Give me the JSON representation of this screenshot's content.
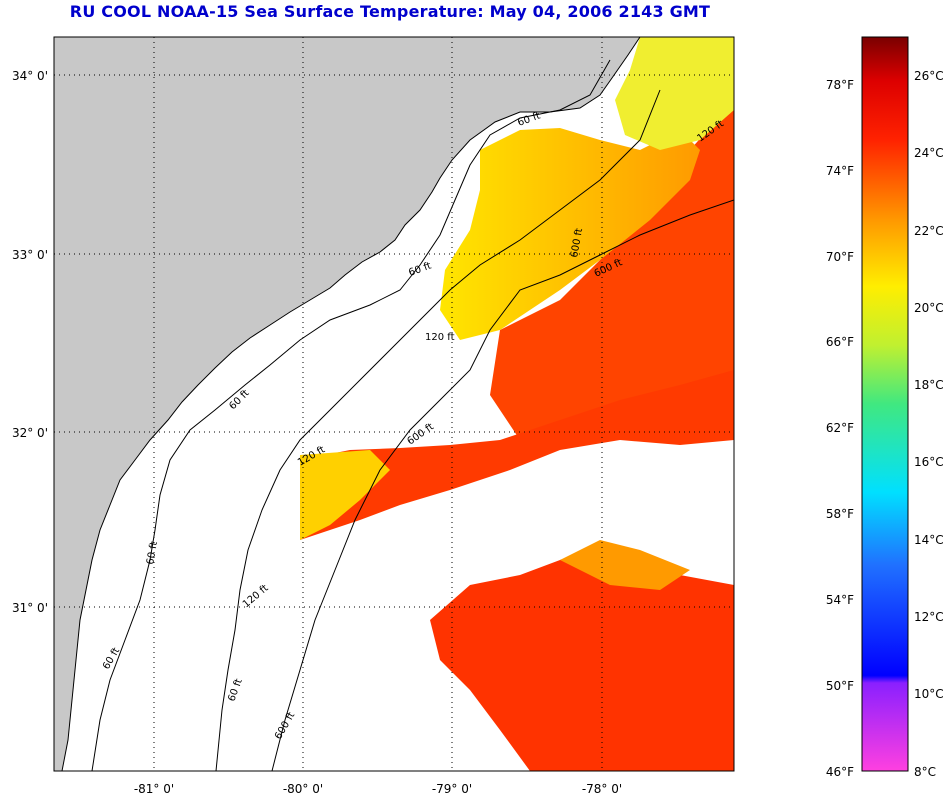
{
  "title": "RU COOL  NOAA-15  Sea Surface Temperature:  May 04, 2006 2143 GMT",
  "map": {
    "lat_labels": [
      "34° 0'",
      "33° 0'",
      "32° 0'",
      "31° 0'"
    ],
    "lon_labels": [
      "-81° 0'",
      "-80° 0'",
      "-79° 0'",
      "-78° 0'"
    ],
    "contour_labels": [
      "60 ft",
      "120 ft",
      "600 ft",
      "60 ft",
      "120 ft",
      "600 ft",
      "60 ft",
      "120 ft",
      "600 ft",
      "60 ft",
      "120 ft",
      "600 ft",
      "60 ft",
      "60 ft"
    ],
    "colors": {
      "land": "#c8c8c8",
      "ocean": "#ffffff",
      "grid": "#000000"
    }
  },
  "colorbar": {
    "fahrenheit_labels": [
      "78°F",
      "74°F",
      "70°F",
      "66°F",
      "62°F",
      "58°F",
      "54°F",
      "50°F",
      "46°F"
    ],
    "celsius_labels": [
      "26°C",
      "24°C",
      "22°C",
      "20°C",
      "18°C",
      "16°C",
      "14°C",
      "12°C",
      "10°C",
      "8°C"
    ]
  }
}
